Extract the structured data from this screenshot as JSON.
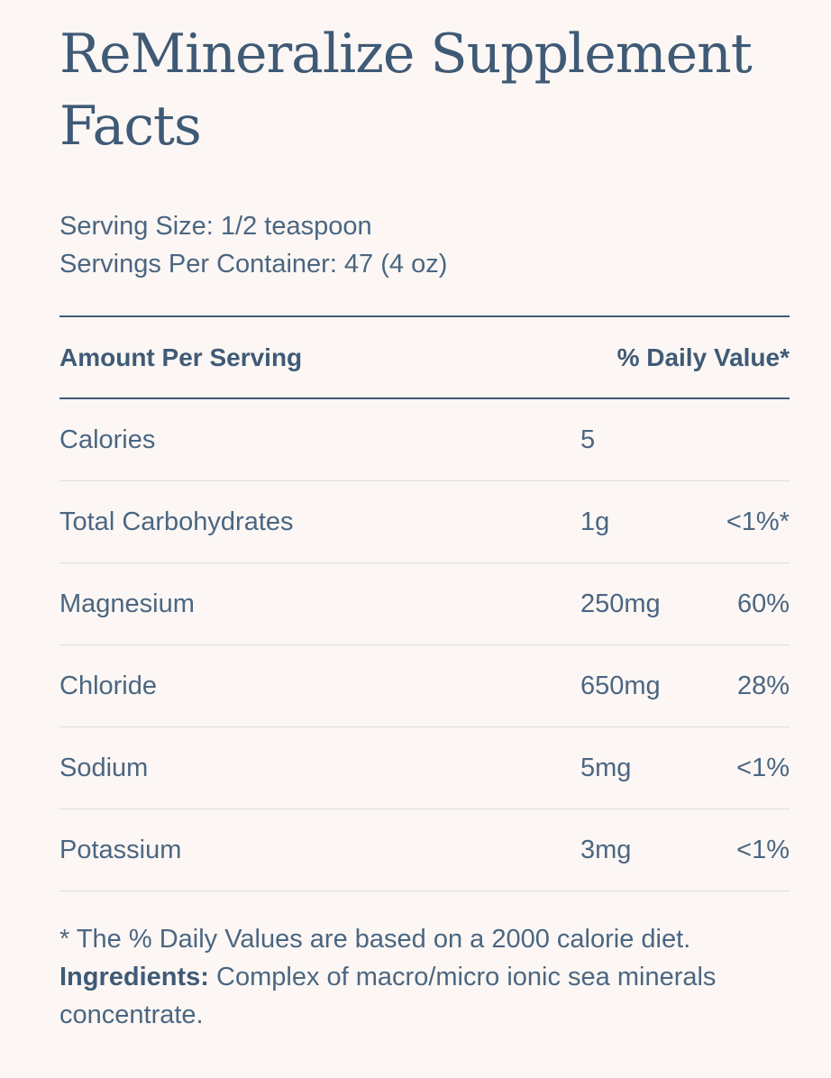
{
  "title": "ReMineralize Supplement Facts",
  "serving": {
    "size": "Serving Size: 1/2 teaspoon",
    "per_container": "Servings Per Container: 47 (4 oz)"
  },
  "table": {
    "header_left": "Amount Per Serving",
    "header_right": "% Daily Value*",
    "rows": [
      {
        "nutrient": "Calories",
        "amount": "5",
        "dv": ""
      },
      {
        "nutrient": "Total Carbohydrates",
        "amount": "1g",
        "dv": "<1%*"
      },
      {
        "nutrient": "Magnesium",
        "amount": "250mg",
        "dv": "60%"
      },
      {
        "nutrient": "Chloride",
        "amount": "650mg",
        "dv": "28%"
      },
      {
        "nutrient": "Sodium",
        "amount": "5mg",
        "dv": "<1%"
      },
      {
        "nutrient": "Potassium",
        "amount": "3mg",
        "dv": "<1%"
      }
    ]
  },
  "footer": {
    "note": "* The % Daily Values are based on a 2000 calorie diet.",
    "ingredients_label": "Ingredients:",
    "ingredients_text": " Complex of macro/micro ionic sea minerals concentrate."
  }
}
